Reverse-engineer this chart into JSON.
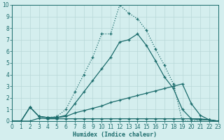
{
  "xlabel": "Humidex (Indice chaleur)",
  "bg_color": "#d4eeee",
  "line_color": "#1a6b6b",
  "grid_color": "#b8d8d8",
  "xlim": [
    0,
    23
  ],
  "ylim": [
    0,
    10
  ],
  "xticks": [
    0,
    1,
    2,
    3,
    4,
    5,
    6,
    7,
    8,
    9,
    10,
    11,
    12,
    13,
    14,
    15,
    16,
    17,
    18,
    19,
    20,
    21,
    22,
    23
  ],
  "yticks": [
    0,
    1,
    2,
    3,
    4,
    5,
    6,
    7,
    8,
    9,
    10
  ],
  "series": [
    {
      "x": [
        0,
        1,
        2,
        3,
        4,
        5,
        6,
        7,
        8,
        9,
        10,
        11,
        12,
        13,
        14,
        15,
        16,
        17,
        18,
        19,
        20,
        21,
        22,
        23
      ],
      "y": [
        0,
        0,
        0,
        0.25,
        0.2,
        0.2,
        0.2,
        0.2,
        0.2,
        0.2,
        0.2,
        0.2,
        0.2,
        0.2,
        0.2,
        0.2,
        0.2,
        0.2,
        0.2,
        0.2,
        0.2,
        0.2,
        0.1,
        0
      ]
    },
    {
      "x": [
        0,
        1,
        2,
        3,
        4,
        5,
        6,
        7,
        8,
        9,
        10,
        11,
        12,
        13,
        14,
        15,
        16,
        17,
        18,
        19,
        20,
        21,
        22,
        23
      ],
      "y": [
        0,
        0,
        1.2,
        0.4,
        0.3,
        0.3,
        0.4,
        0.7,
        0.9,
        1.1,
        1.3,
        1.6,
        1.8,
        2.0,
        2.2,
        2.4,
        2.6,
        2.8,
        3.0,
        3.2,
        1.5,
        0.5,
        0.1,
        0
      ]
    },
    {
      "x": [
        0,
        1,
        2,
        3,
        4,
        5,
        6,
        7,
        8,
        9,
        10,
        11,
        12,
        13,
        14,
        15,
        16,
        17,
        18,
        19,
        20,
        21,
        22,
        23
      ],
      "y": [
        0,
        0,
        1.2,
        0.4,
        0.3,
        0.3,
        0.5,
        1.5,
        2.5,
        3.5,
        4.5,
        5.5,
        6.8,
        7.0,
        7.5,
        6.5,
        5.2,
        3.8,
        2.8,
        1.0,
        0.2,
        0.1,
        0.1,
        0
      ]
    },
    {
      "x": [
        0,
        1,
        2,
        3,
        4,
        5,
        6,
        7,
        8,
        9,
        10,
        11,
        12,
        13,
        14,
        15,
        16,
        17,
        18,
        19,
        20,
        21,
        22,
        23
      ],
      "y": [
        0,
        0,
        1.2,
        0.4,
        0.3,
        0.4,
        1.0,
        2.5,
        4.0,
        5.5,
        7.5,
        7.5,
        10.0,
        9.3,
        8.8,
        7.8,
        6.2,
        4.8,
        3.2,
        0.0,
        0.0,
        0.1,
        0.1,
        0
      ]
    }
  ]
}
